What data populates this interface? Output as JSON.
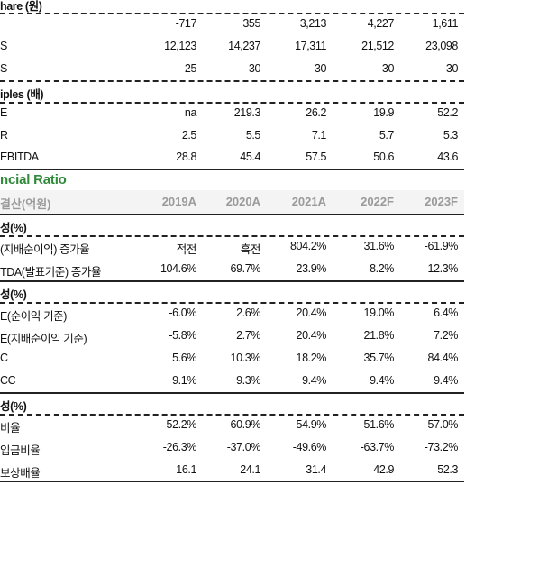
{
  "top_section": {
    "label": "hare (원)",
    "rows": [
      {
        "label": "",
        "values": [
          "-717",
          "355",
          "3,213",
          "4,227",
          "1,611"
        ]
      },
      {
        "label": "S",
        "values": [
          "12,123",
          "14,237",
          "17,311",
          "21,512",
          "23,098"
        ]
      },
      {
        "label": "S",
        "values": [
          "25",
          "30",
          "30",
          "30",
          "30"
        ]
      }
    ]
  },
  "multiples_section": {
    "label": "iples (배)",
    "rows": [
      {
        "label": "E",
        "values": [
          "na",
          "219.3",
          "26.2",
          "19.9",
          "52.2"
        ]
      },
      {
        "label": "R",
        "values": [
          "2.5",
          "5.5",
          "7.1",
          "5.7",
          "5.3"
        ]
      },
      {
        "label": "EBITDA",
        "values": [
          "28.8",
          "45.4",
          "57.5",
          "50.6",
          "43.6"
        ]
      }
    ]
  },
  "title": "ncial Ratio",
  "header": {
    "label": "결산(억원)",
    "years": [
      "2019A",
      "2020A",
      "2021A",
      "2022F",
      "2023F"
    ]
  },
  "growth_section": {
    "label": "성(%)",
    "rows": [
      {
        "label": "(지배순이익) 증가율",
        "values": [
          "적전",
          "흑전",
          "804.2%",
          "31.6%",
          "-61.9%"
        ]
      },
      {
        "label": "TDA(발표기준) 증가율",
        "values": [
          "104.6%",
          "69.7%",
          "23.9%",
          "8.2%",
          "12.3%"
        ]
      }
    ]
  },
  "profit_section": {
    "label": "성(%)",
    "rows": [
      {
        "label": "E(순이익 기준)",
        "values": [
          "-6.0%",
          "2.6%",
          "20.4%",
          "19.0%",
          "6.4%"
        ]
      },
      {
        "label": "E(지배순이익 기준)",
        "values": [
          "-5.8%",
          "2.7%",
          "20.4%",
          "21.8%",
          "7.2%"
        ]
      },
      {
        "label": "C",
        "values": [
          "5.6%",
          "10.3%",
          "18.2%",
          "35.7%",
          "84.4%"
        ]
      },
      {
        "label": "CC",
        "values": [
          "9.1%",
          "9.3%",
          "9.4%",
          "9.4%",
          "9.4%"
        ]
      }
    ]
  },
  "stability_section": {
    "label": "성(%)",
    "rows": [
      {
        "label": "비율",
        "values": [
          "52.2%",
          "60.9%",
          "54.9%",
          "51.6%",
          "57.0%"
        ]
      },
      {
        "label": "입금비율",
        "values": [
          "-26.3%",
          "-37.0%",
          "-49.6%",
          "-63.7%",
          "-73.2%"
        ]
      },
      {
        "label": "보상배율",
        "values": [
          "16.1",
          "24.1",
          "31.4",
          "42.9",
          "52.3"
        ]
      }
    ]
  }
}
